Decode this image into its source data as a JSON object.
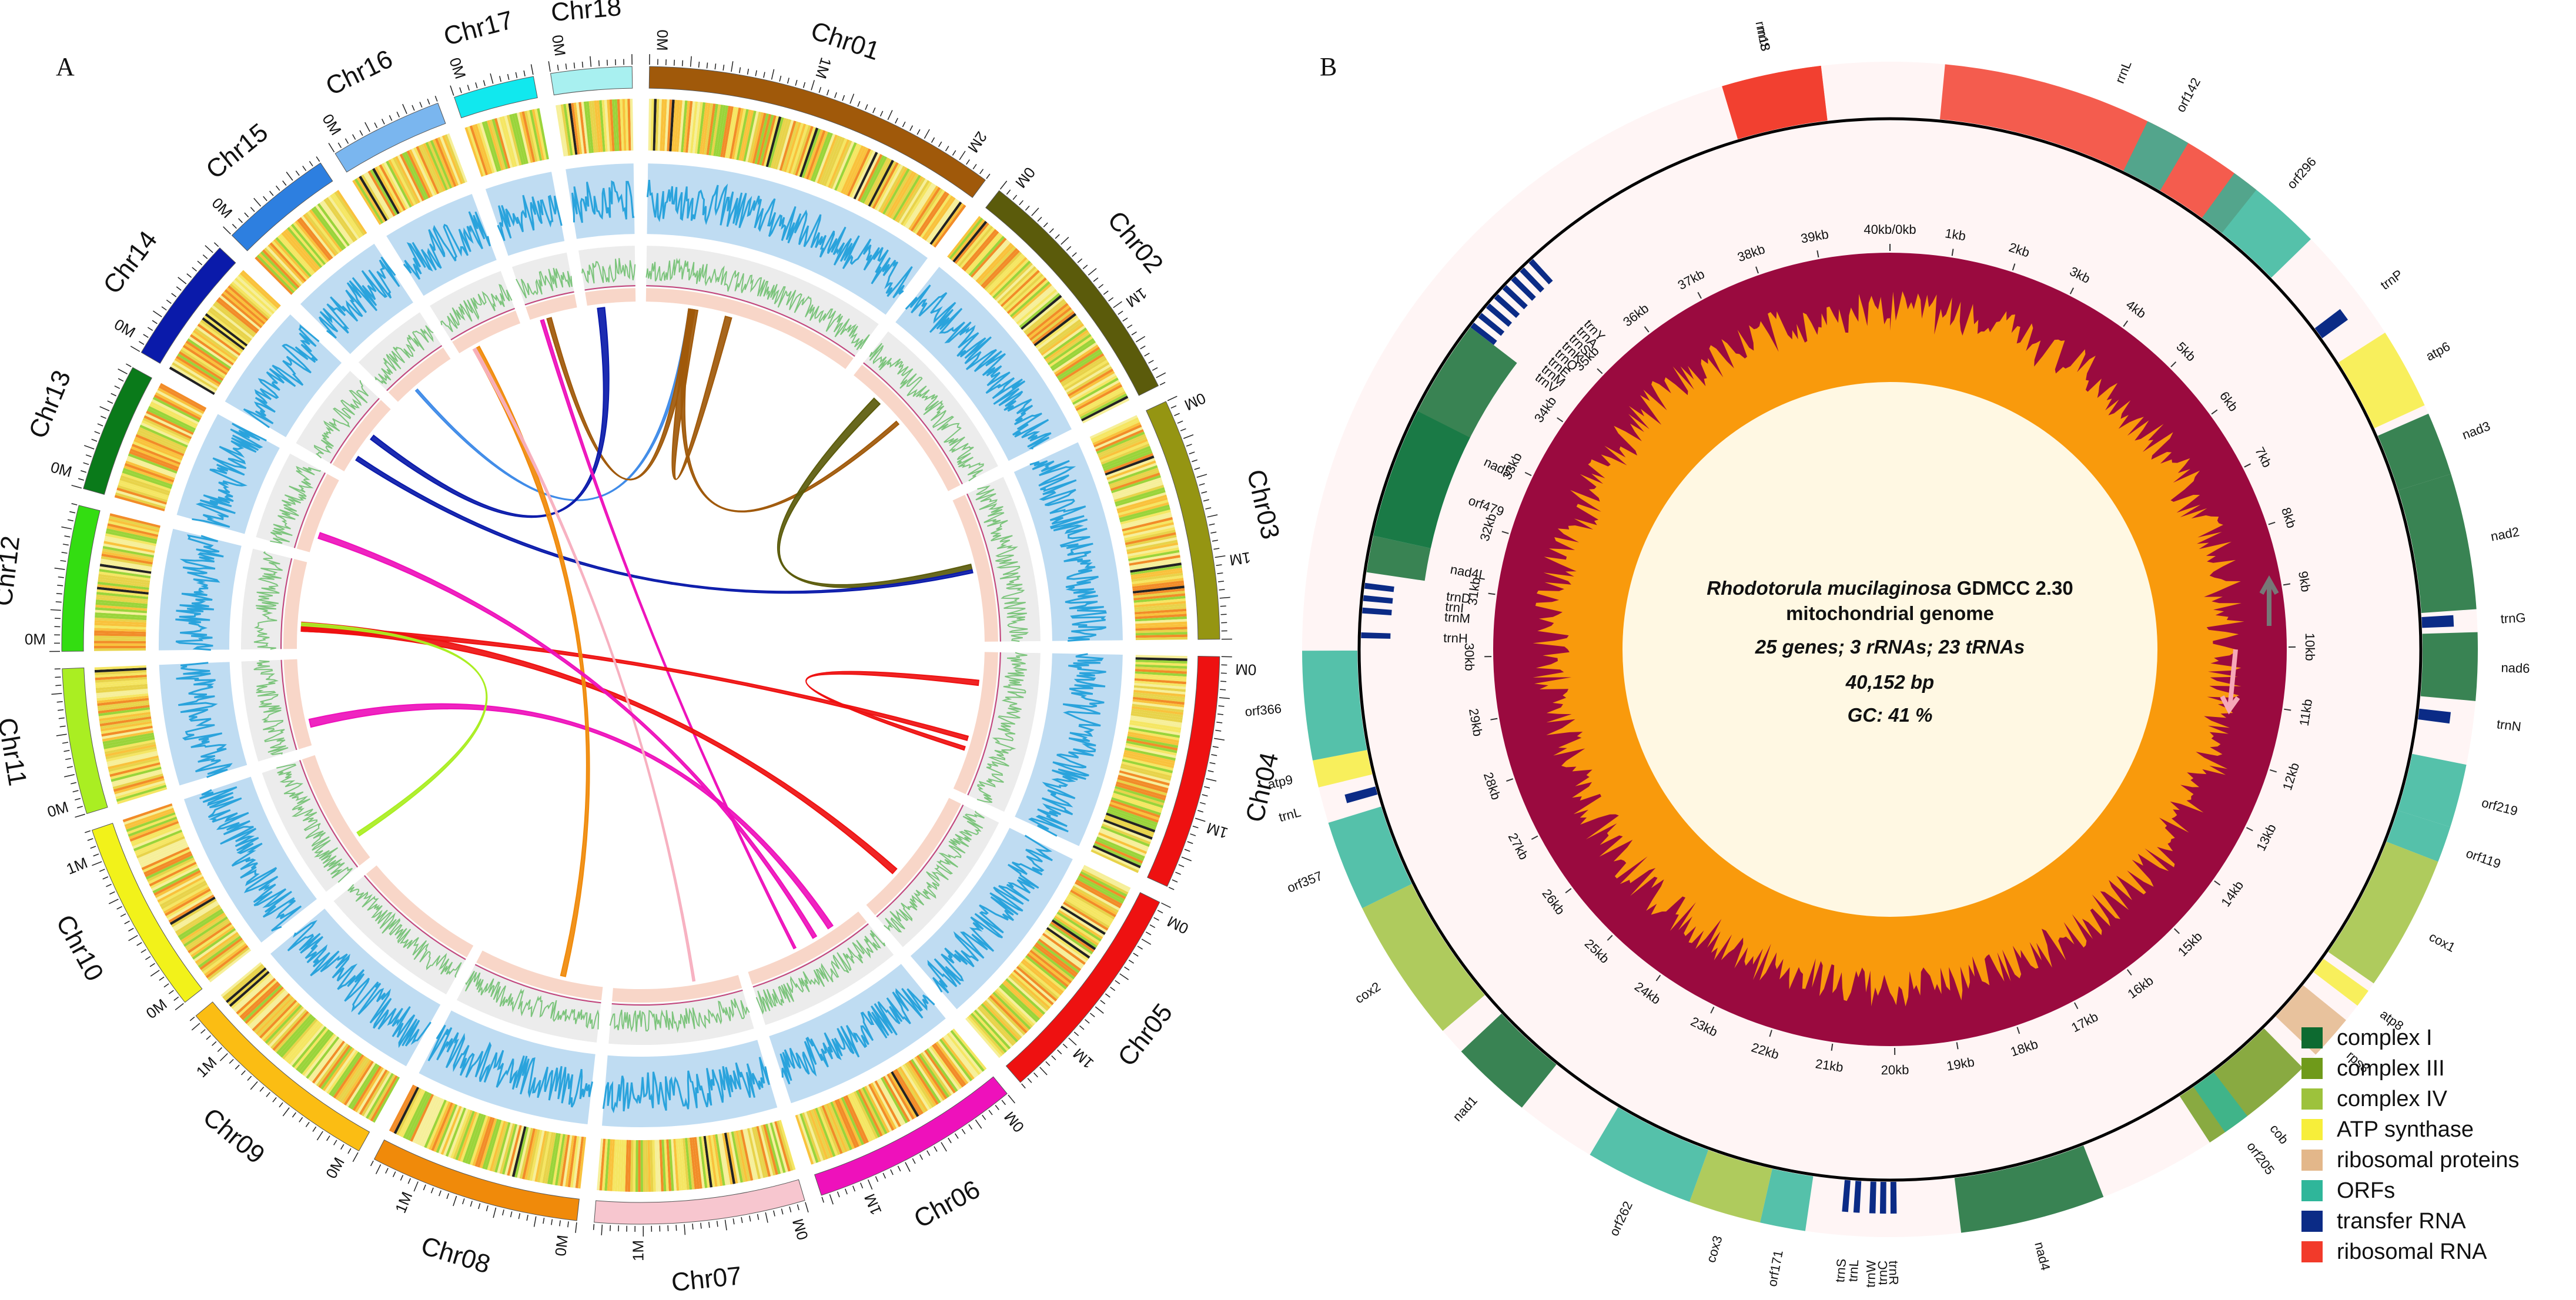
{
  "panels": {
    "a_label": "A",
    "b_label": "B"
  },
  "panel_a": {
    "chromosomes": [
      {
        "name": "Chr01",
        "color": "#a0590a",
        "size_mb": 2.2,
        "start_label": "0M",
        "mid_labels": [
          "1M",
          "2M"
        ]
      },
      {
        "name": "Chr02",
        "color": "#5b5b0b",
        "size_mb": 1.55,
        "start_label": "0M",
        "mid_labels": [
          "1M"
        ]
      },
      {
        "name": "Chr03",
        "color": "#959512",
        "size_mb": 1.5,
        "start_label": "0M",
        "mid_labels": [
          "1M"
        ]
      },
      {
        "name": "Chr04",
        "color": "#ee1111",
        "size_mb": 1.45,
        "start_label": "0M",
        "mid_labels": [
          "1M"
        ]
      },
      {
        "name": "Chr05",
        "color": "#ee1111",
        "size_mb": 1.4,
        "start_label": "0M",
        "mid_labels": [
          "1M"
        ]
      },
      {
        "name": "Chr06",
        "color": "#ee11bb",
        "size_mb": 1.3,
        "start_label": "0M",
        "mid_labels": [
          "1M"
        ]
      },
      {
        "name": "Chr07",
        "color": "#f7c6cf",
        "size_mb": 1.3,
        "start_label": "0M",
        "mid_labels": [
          "1M"
        ]
      },
      {
        "name": "Chr08",
        "color": "#f08a0a",
        "size_mb": 1.3,
        "start_label": "0M",
        "mid_labels": [
          "1M"
        ]
      },
      {
        "name": "Chr09",
        "color": "#fbbd13",
        "size_mb": 1.3,
        "start_label": "0M",
        "mid_labels": [
          "1M"
        ]
      },
      {
        "name": "Chr10",
        "color": "#f2f21a",
        "size_mb": 1.2,
        "start_label": "0M",
        "mid_labels": [
          "1M"
        ]
      },
      {
        "name": "Chr11",
        "color": "#aaee22",
        "size_mb": 0.9,
        "start_label": "0M",
        "mid_labels": []
      },
      {
        "name": "Chr12",
        "color": "#33dd11",
        "size_mb": 0.9,
        "start_label": "0M",
        "mid_labels": []
      },
      {
        "name": "Chr13",
        "color": "#0a7a1a",
        "size_mb": 0.8,
        "start_label": "0M",
        "mid_labels": []
      },
      {
        "name": "Chr14",
        "color": "#0a1aaa",
        "size_mb": 0.8,
        "start_label": "0M",
        "mid_labels": []
      },
      {
        "name": "Chr15",
        "color": "#2d7fe0",
        "size_mb": 0.7,
        "start_label": "0M",
        "mid_labels": []
      },
      {
        "name": "Chr16",
        "color": "#7ab6ef",
        "size_mb": 0.7,
        "start_label": "0M",
        "mid_labels": []
      },
      {
        "name": "Chr17",
        "color": "#11e8ee",
        "size_mb": 0.5,
        "start_label": "0M",
        "mid_labels": []
      },
      {
        "name": "Chr18",
        "color": "#a8f0f0",
        "size_mb": 0.5,
        "start_label": "0M",
        "mid_labels": []
      }
    ],
    "links": [
      {
        "from": "Chr01",
        "to": "Chr15",
        "color": "#3f8be8"
      },
      {
        "from": "Chr01",
        "to": "Chr17",
        "color": "#a0590a"
      },
      {
        "from": "Chr01",
        "to": "Chr01",
        "color": "#a0590a"
      },
      {
        "from": "Chr01",
        "to": "Chr02",
        "color": "#a0590a"
      },
      {
        "from": "Chr02",
        "to": "Chr03",
        "color": "#5b5b0b"
      },
      {
        "from": "Chr14",
        "to": "Chr03",
        "color": "#0a1aaa"
      },
      {
        "from": "Chr18",
        "to": "Chr14",
        "color": "#0a1aaa"
      },
      {
        "from": "Chr17",
        "to": "Chr06",
        "color": "#ee11bb"
      },
      {
        "from": "Chr12",
        "to": "Chr04",
        "color": "#ee1111"
      },
      {
        "from": "Chr12",
        "to": "Chr05",
        "color": "#ee1111"
      },
      {
        "from": "Chr04",
        "to": "Chr04",
        "color": "#ee1111"
      },
      {
        "from": "Chr11",
        "to": "Chr06",
        "color": "#ee11bb"
      },
      {
        "from": "Chr10",
        "to": "Chr12",
        "color": "#aaee22"
      },
      {
        "from": "Chr16",
        "to": "Chr08",
        "color": "#f08a0a"
      },
      {
        "from": "Chr16",
        "to": "Chr07",
        "color": "#f7b0c0"
      },
      {
        "from": "Chr13",
        "to": "Chr06",
        "color": "#ee11bb"
      }
    ]
  },
  "panel_b": {
    "title_species": "Rhodotorula mucilaginosa",
    "title_strain": " GDMCC 2.30",
    "subtitle": "mitochondrial genome",
    "gene_counts": "25 genes; 3 rRNAs; 23 tRNAs",
    "length": "40,152 bp",
    "gc": "GC: 41 %",
    "genome_kb": 40.152,
    "tick_labels": [
      "1kb",
      "2kb",
      "3kb",
      "4kb",
      "5kb",
      "6kb",
      "7kb",
      "8kb",
      "9kb",
      "10kb",
      "11kb",
      "12kb",
      "13kb",
      "14kb",
      "15kb",
      "16kb",
      "17kb",
      "18kb",
      "19kb",
      "20kb",
      "21kb",
      "22kb",
      "23kb",
      "24kb",
      "25kb",
      "26kb",
      "27kb",
      "28kb",
      "29kb",
      "30kb",
      "31kb",
      "32kb",
      "33kb",
      "34kb",
      "35kb",
      "36kb",
      "37kb",
      "38kb",
      "39kb",
      "40kb/0kb"
    ],
    "genes": [
      {
        "name": "rrnS",
        "start_kb": 38.3,
        "end_kb": 39.4,
        "strand": "outer",
        "category": "ribosomal RNA"
      },
      {
        "name": "rrn18",
        "start_kb": 38.3,
        "end_kb": 39.4,
        "strand": "outer",
        "category": "ribosomal RNA"
      },
      {
        "name": "rrnL",
        "start_kb": 0.6,
        "end_kb": 4.3,
        "strand": "outer",
        "category": "ribosomal RNA"
      },
      {
        "name": "orf142",
        "start_kb": 2.9,
        "end_kb": 3.4,
        "strand": "outer",
        "category": "ORFs"
      },
      {
        "name": "orf296",
        "start_kb": 4.0,
        "end_kb": 5.1,
        "strand": "outer",
        "category": "ORFs"
      },
      {
        "name": "trnP",
        "start_kb": 5.9,
        "end_kb": 6.05,
        "strand": "outer",
        "category": "transfer RNA"
      },
      {
        "name": "atp6",
        "start_kb": 6.4,
        "end_kb": 7.3,
        "strand": "outer",
        "category": "ATP synthase"
      },
      {
        "name": "nad3",
        "start_kb": 7.4,
        "end_kb": 8.1,
        "strand": "outer",
        "category": "complex I"
      },
      {
        "name": "nad2",
        "start_kb": 8.1,
        "end_kb": 9.6,
        "strand": "outer",
        "category": "complex I"
      },
      {
        "name": "trnG",
        "start_kb": 9.65,
        "end_kb": 9.78,
        "strand": "outer",
        "category": "transfer RNA"
      },
      {
        "name": "nad6",
        "start_kb": 9.85,
        "end_kb": 10.6,
        "strand": "outer",
        "category": "complex I"
      },
      {
        "name": "trnN",
        "start_kb": 10.75,
        "end_kb": 10.88,
        "strand": "outer",
        "category": "transfer RNA"
      },
      {
        "name": "orf219",
        "start_kb": 11.3,
        "end_kb": 12.0,
        "strand": "outer",
        "category": "ORFs"
      },
      {
        "name": "orf119",
        "start_kb": 12.0,
        "end_kb": 12.4,
        "strand": "outer",
        "category": "ORFs"
      },
      {
        "name": "cox1",
        "start_kb": 12.4,
        "end_kb": 13.9,
        "strand": "outer",
        "category": "complex IV"
      },
      {
        "name": "atp8",
        "start_kb": 14.0,
        "end_kb": 14.2,
        "strand": "outer",
        "category": "ATP synthase"
      },
      {
        "name": "rps3",
        "start_kb": 14.4,
        "end_kb": 14.9,
        "strand": "outer",
        "category": "ribosomal proteins"
      },
      {
        "name": "cob",
        "start_kb": 15.1,
        "end_kb": 16.4,
        "strand": "outer",
        "category": "complex III"
      },
      {
        "name": "orf205",
        "start_kb": 15.9,
        "end_kb": 16.2,
        "strand": "outer",
        "category": "ORFs"
      },
      {
        "name": "nad4",
        "start_kb": 17.7,
        "end_kb": 19.3,
        "strand": "outer",
        "category": "complex I"
      },
      {
        "name": "trnR",
        "start_kb": 20.0,
        "end_kb": 20.07,
        "strand": "outer",
        "category": "transfer RNA"
      },
      {
        "name": "trnC",
        "start_kb": 20.12,
        "end_kb": 20.19,
        "strand": "outer",
        "category": "transfer RNA"
      },
      {
        "name": "trnW",
        "start_kb": 20.24,
        "end_kb": 20.31,
        "strand": "outer",
        "category": "transfer RNA"
      },
      {
        "name": "trnL",
        "start_kb": 20.42,
        "end_kb": 20.49,
        "strand": "outer",
        "category": "transfer RNA"
      },
      {
        "name": "trnS",
        "start_kb": 20.55,
        "end_kb": 20.62,
        "strand": "outer",
        "category": "transfer RNA"
      },
      {
        "name": "orf171",
        "start_kb": 21.0,
        "end_kb": 21.5,
        "strand": "outer",
        "category": "ORFs"
      },
      {
        "name": "cox3",
        "start_kb": 21.5,
        "end_kb": 22.3,
        "strand": "outer",
        "category": "complex IV"
      },
      {
        "name": "orf262",
        "start_kb": 22.3,
        "end_kb": 23.5,
        "strand": "outer",
        "category": "ORFs"
      },
      {
        "name": "nad1",
        "start_kb": 24.4,
        "end_kb": 25.3,
        "strand": "outer",
        "category": "complex I"
      },
      {
        "name": "cox2",
        "start_kb": 25.6,
        "end_kb": 27.2,
        "strand": "outer",
        "category": "complex IV"
      },
      {
        "name": "orf357",
        "start_kb": 27.2,
        "end_kb": 28.2,
        "strand": "outer",
        "category": "ORFs"
      },
      {
        "name": "trnL",
        "start_kb": 28.35,
        "end_kb": 28.45,
        "strand": "outer",
        "category": "transfer RNA"
      },
      {
        "name": "atp9",
        "start_kb": 28.6,
        "end_kb": 28.9,
        "strand": "outer",
        "category": "ATP synthase"
      },
      {
        "name": "orf366",
        "start_kb": 28.9,
        "end_kb": 30.1,
        "strand": "outer",
        "category": "ORFs"
      },
      {
        "name": "trnH",
        "start_kb": 30.25,
        "end_kb": 30.32,
        "strand": "inner",
        "category": "transfer RNA"
      },
      {
        "name": "trnM",
        "start_kb": 30.55,
        "end_kb": 30.62,
        "strand": "inner",
        "category": "transfer RNA"
      },
      {
        "name": "trnI",
        "start_kb": 30.7,
        "end_kb": 30.77,
        "strand": "inner",
        "category": "transfer RNA"
      },
      {
        "name": "trnD",
        "start_kb": 30.85,
        "end_kb": 30.92,
        "strand": "inner",
        "category": "transfer RNA"
      },
      {
        "name": "nad4L",
        "start_kb": 31.05,
        "end_kb": 31.5,
        "strand": "inner",
        "category": "complex I"
      },
      {
        "name": "orf479",
        "start_kb": 31.5,
        "end_kb": 33.1,
        "strand": "inner",
        "category": "ORFs"
      },
      {
        "name": "nad5",
        "start_kb": 31.5,
        "end_kb": 34.3,
        "strand": "inner",
        "category": "complex I"
      },
      {
        "name": "trnV",
        "start_kb": 34.3,
        "end_kb": 34.37,
        "strand": "inner",
        "category": "transfer RNA"
      },
      {
        "name": "trnM",
        "start_kb": 34.45,
        "end_kb": 34.52,
        "strand": "inner",
        "category": "transfer RNA"
      },
      {
        "name": "trnE",
        "start_kb": 34.6,
        "end_kb": 34.67,
        "strand": "inner",
        "category": "transfer RNA"
      },
      {
        "name": "trnQ",
        "start_kb": 34.75,
        "end_kb": 34.82,
        "strand": "inner",
        "category": "transfer RNA"
      },
      {
        "name": "trnK",
        "start_kb": 34.9,
        "end_kb": 34.97,
        "strand": "inner",
        "category": "transfer RNA"
      },
      {
        "name": "trnS",
        "start_kb": 35.05,
        "end_kb": 35.12,
        "strand": "inner",
        "category": "transfer RNA"
      },
      {
        "name": "trnA",
        "start_kb": 35.2,
        "end_kb": 35.27,
        "strand": "inner",
        "category": "transfer RNA"
      },
      {
        "name": "trnY",
        "start_kb": 35.35,
        "end_kb": 35.42,
        "strand": "inner",
        "category": "transfer RNA"
      }
    ],
    "legend": [
      {
        "label": "complex I",
        "color": "#0d6a30"
      },
      {
        "label": "complex III",
        "color": "#6f9a1a"
      },
      {
        "label": "complex IV",
        "color": "#9dc23c"
      },
      {
        "label": "ATP synthase",
        "color": "#f7ee3a"
      },
      {
        "label": "ribosomal proteins",
        "color": "#e3b78a"
      },
      {
        "label": "ORFs",
        "color": "#2fb69a"
      },
      {
        "label": "transfer RNA",
        "color": "#0b2b86"
      },
      {
        "label": "ribosomal RNA",
        "color": "#f23a2a"
      }
    ]
  }
}
